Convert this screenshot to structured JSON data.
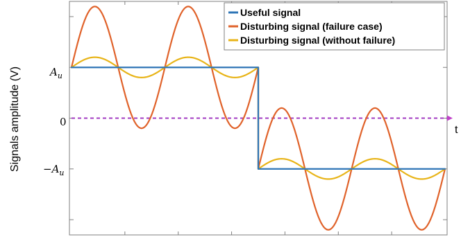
{
  "chart_data": {
    "type": "line",
    "title": "",
    "xlabel": "t",
    "ylabel": "Signals amplitude (V)",
    "y_tick_labels": [
      {
        "value": 1,
        "main": "A",
        "sub": "u"
      },
      {
        "value": 0,
        "main": "0",
        "sub": ""
      },
      {
        "value": -1,
        "main": "−A",
        "sub": "u"
      }
    ],
    "xlim": [
      0,
      1
    ],
    "ylim": [
      -2.3,
      2.3
    ],
    "grid": false,
    "legend_position": "top-right",
    "zero_line": {
      "y": 0,
      "color": "#A23BC2",
      "style": "dashed",
      "arrow": true
    },
    "series": [
      {
        "name": "Useful signal",
        "color": "#2E75B6",
        "x": [
          0,
          0.5,
          0.5,
          1
        ],
        "y": [
          1,
          1,
          -1,
          -1
        ]
      },
      {
        "name": "Disturbing signal (failure case)",
        "color": "#E0622A",
        "x": [
          0,
          0.0625,
          0.125,
          0.1875,
          0.25,
          0.3125,
          0.375,
          0.4375,
          0.5,
          0.5,
          0.5625,
          0.625,
          0.6875,
          0.75,
          0.8125,
          0.875,
          0.9375,
          1
        ],
        "y": [
          1,
          2.2,
          1,
          -0.2,
          1,
          2.2,
          1,
          -0.2,
          1,
          -1,
          0.2,
          -1,
          -2.2,
          -1,
          0.2,
          -1,
          -2.2,
          -1
        ]
      },
      {
        "name": "Disturbing signal (without failure)",
        "color": "#E8B418",
        "x": [
          0,
          0.0625,
          0.125,
          0.1875,
          0.25,
          0.3125,
          0.375,
          0.4375,
          0.5,
          0.5,
          0.5625,
          0.625,
          0.6875,
          0.75,
          0.8125,
          0.875,
          0.9375,
          1
        ],
        "y": [
          1,
          1.2,
          1,
          0.8,
          1,
          1.2,
          1,
          0.8,
          1,
          -1,
          -0.8,
          -1,
          -1.2,
          -1,
          -0.8,
          -1,
          -1.2,
          -1
        ]
      }
    ]
  }
}
